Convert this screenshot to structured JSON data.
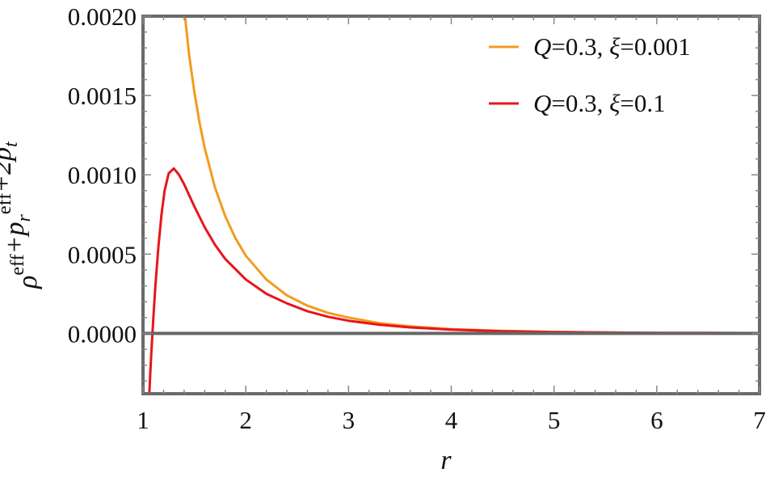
{
  "chart_data": {
    "type": "line",
    "title": "",
    "xlabel": "r",
    "ylabel": {
      "base": [
        {
          "t": "ρ",
          "sup": "eff"
        },
        {
          "t": "+p",
          "sub": "r",
          "sup": "eff"
        },
        {
          "t": "+2p",
          "sub": "t",
          "sup": "eff"
        }
      ]
    },
    "xlim": [
      1,
      7
    ],
    "ylim": [
      -0.00038,
      0.002
    ],
    "xticks": [
      1,
      2,
      3,
      4,
      5,
      6,
      7
    ],
    "xtick_labels": [
      "1",
      "2",
      "3",
      "4",
      "5",
      "6",
      "7"
    ],
    "yticks": [
      0.0,
      0.0005,
      0.001,
      0.0015,
      0.002
    ],
    "ytick_labels": [
      "0.0000",
      "0.0005",
      "0.0010",
      "0.0015",
      "0.0020"
    ],
    "grid": false,
    "legend_position": "top-right",
    "series": [
      {
        "name": "Q=0.3, ξ=0.001",
        "legend_parts": [
          [
            "Q",
            "italic"
          ],
          [
            "=0.3, ",
            "normal"
          ],
          [
            "ξ",
            "italic"
          ],
          [
            "=0.001",
            "normal"
          ]
        ],
        "color": "#f39b1f",
        "x": [
          1.4,
          1.45,
          1.5,
          1.55,
          1.6,
          1.7,
          1.8,
          1.9,
          2.0,
          2.2,
          2.4,
          2.6,
          2.8,
          3.0,
          3.3,
          3.6,
          4.0,
          4.5,
          5.0,
          5.5,
          6.0,
          6.5,
          7.0
        ],
        "y": [
          0.00205,
          0.00175,
          0.00152,
          0.00133,
          0.00117,
          0.00092,
          0.00074,
          0.0006,
          0.00049,
          0.00034,
          0.00024,
          0.000175,
          0.00013,
          0.0001,
          6.5e-05,
          4.5e-05,
          2.7e-05,
          1.6e-05,
          1e-05,
          6e-06,
          4e-06,
          3e-06,
          2e-06
        ]
      },
      {
        "name": "Q=0.3, ξ=0.1",
        "legend_parts": [
          [
            "Q",
            "italic"
          ],
          [
            "=0.3, ",
            "normal"
          ],
          [
            "ξ",
            "italic"
          ],
          [
            "=0.1",
            "normal"
          ]
        ],
        "color": "#e8141c",
        "x": [
          1.06,
          1.07,
          1.08,
          1.1,
          1.12,
          1.15,
          1.18,
          1.21,
          1.25,
          1.3,
          1.35,
          1.4,
          1.5,
          1.6,
          1.7,
          1.8,
          2.0,
          2.2,
          2.4,
          2.6,
          2.8,
          3.0,
          3.3,
          3.6,
          4.0,
          4.5,
          5.0,
          5.5,
          6.0,
          6.5,
          7.0
        ],
        "y": [
          -0.0004,
          -0.00026,
          -0.00013,
          9e-05,
          0.0003,
          0.00055,
          0.00075,
          0.0009,
          0.00101,
          0.00104,
          0.001,
          0.00094,
          0.0008,
          0.00067,
          0.00056,
          0.00047,
          0.00034,
          0.00025,
          0.00019,
          0.00014,
          0.000105,
          8e-05,
          5.5e-05,
          3.8e-05,
          2.4e-05,
          1.4e-05,
          9e-06,
          6e-06,
          4e-06,
          3e-06,
          2e-06
        ]
      }
    ]
  }
}
